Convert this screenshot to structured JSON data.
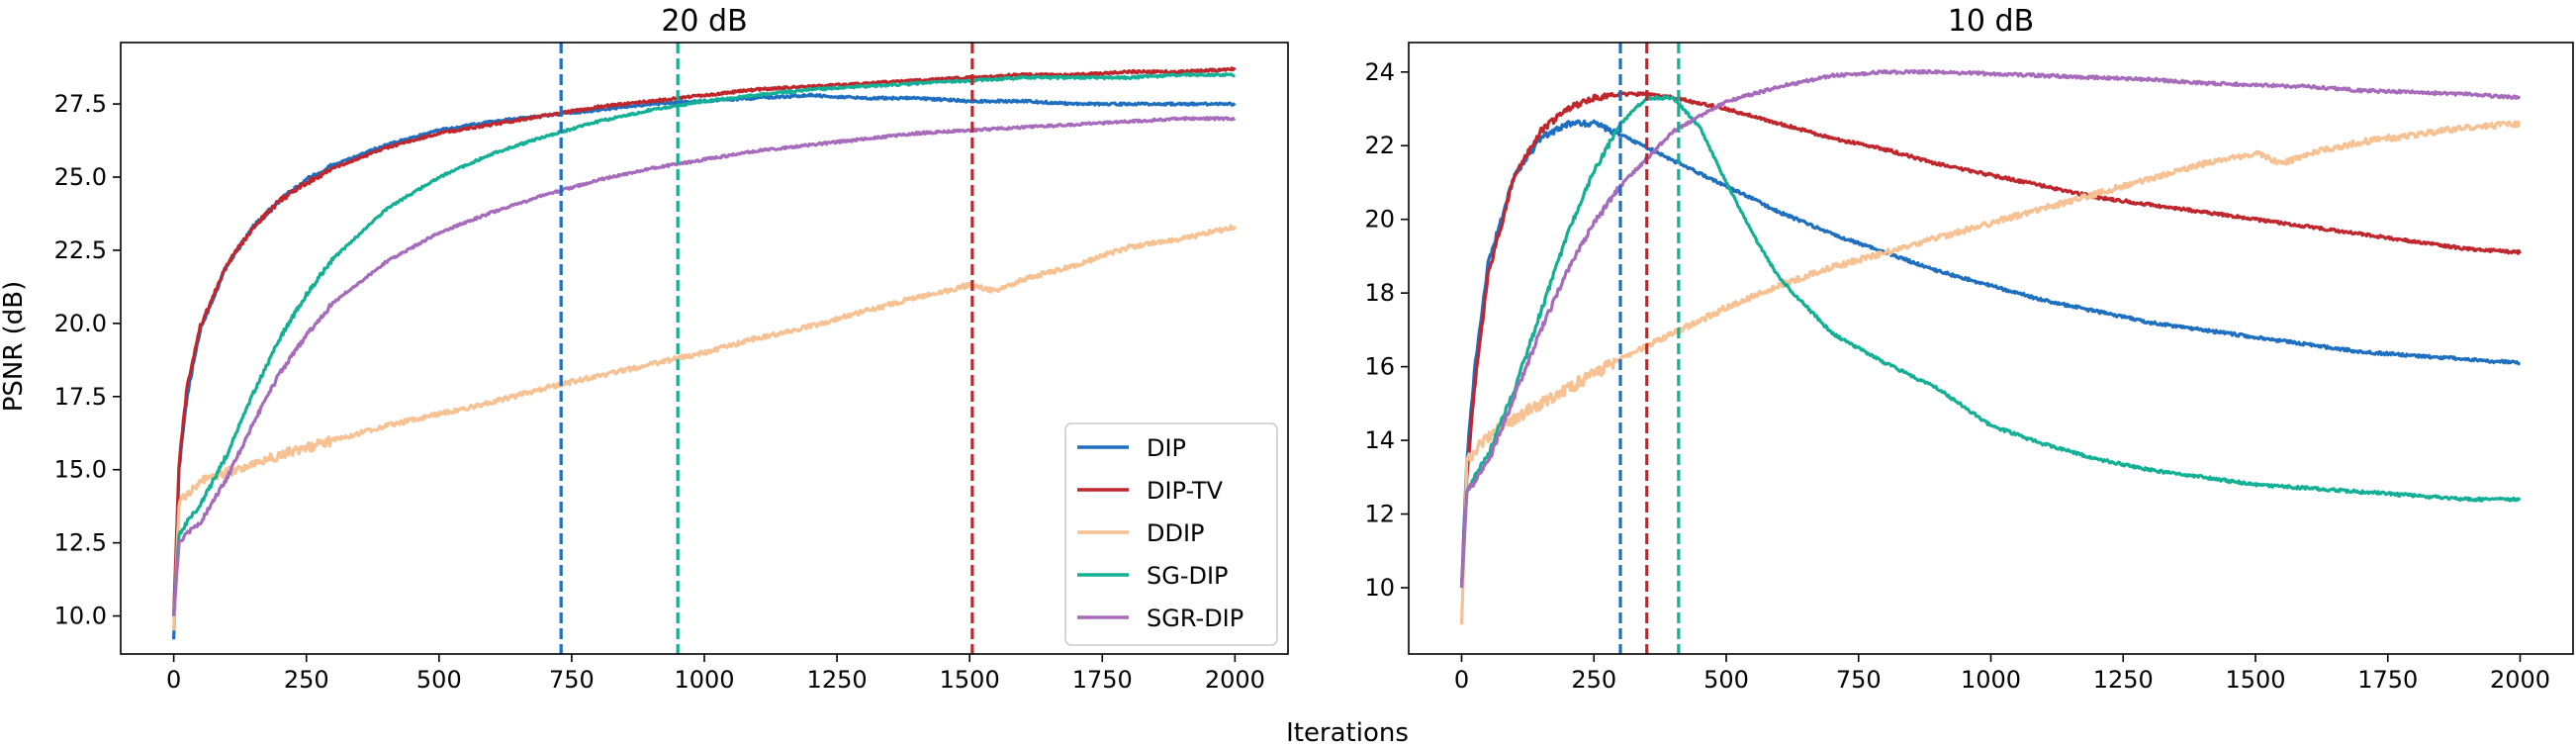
{
  "figure": {
    "xlabel": "Iterations",
    "ylabel": "PSNR (dB)"
  },
  "legend": {
    "location": "lower-right of left panel",
    "entries": [
      {
        "name": "DIP",
        "color": "#1f6fc0"
      },
      {
        "name": "DIP-TV",
        "color": "#c0272d"
      },
      {
        "name": "DDIP",
        "color": "#f6c193"
      },
      {
        "name": "SG-DIP",
        "color": "#13b096"
      },
      {
        "name": "SGR-DIP",
        "color": "#a66bbb"
      }
    ]
  },
  "chart_data": [
    {
      "type": "line",
      "title": "20 dB",
      "xlabel": "Iterations",
      "ylabel": "PSNR (dB)",
      "xlim": [
        -100,
        2100
      ],
      "ylim": [
        8.7,
        29.6
      ],
      "xticks": [
        0,
        250,
        500,
        750,
        1000,
        1250,
        1500,
        1750,
        2000
      ],
      "yticks": [
        10.0,
        12.5,
        15.0,
        17.5,
        20.0,
        22.5,
        25.0,
        27.5
      ],
      "ytick_labels": [
        "10.0",
        "12.5",
        "15.0",
        "17.5",
        "20.0",
        "22.5",
        "25.0",
        "27.5"
      ],
      "vlines": [
        {
          "x": 730,
          "color": "#1f6fc0",
          "style": "dashed"
        },
        {
          "x": 950,
          "color": "#13b096",
          "style": "dashed"
        },
        {
          "x": 1505,
          "color": "#c0272d",
          "style": "dashed"
        }
      ],
      "series": [
        {
          "name": "DIP",
          "color": "#1f6fc0",
          "x": [
            0,
            10,
            25,
            50,
            100,
            150,
            200,
            250,
            300,
            400,
            500,
            600,
            700,
            800,
            900,
            1000,
            1100,
            1200,
            1300,
            1400,
            1500,
            1600,
            1700,
            1800,
            1900,
            2000
          ],
          "y": [
            9.2,
            15.0,
            17.5,
            19.8,
            22.0,
            23.3,
            24.2,
            24.9,
            25.4,
            26.1,
            26.6,
            26.9,
            27.1,
            27.3,
            27.5,
            27.6,
            27.7,
            27.8,
            27.7,
            27.7,
            27.6,
            27.6,
            27.5,
            27.5,
            27.5,
            27.5
          ]
        },
        {
          "name": "DIP-TV",
          "color": "#c0272d",
          "x": [
            0,
            10,
            25,
            50,
            100,
            150,
            200,
            250,
            300,
            400,
            500,
            600,
            700,
            800,
            900,
            1000,
            1100,
            1200,
            1300,
            1400,
            1500,
            1600,
            1700,
            1800,
            1900,
            2000
          ],
          "y": [
            10.0,
            15.2,
            17.8,
            19.9,
            22.0,
            23.3,
            24.2,
            24.8,
            25.3,
            26.0,
            26.5,
            26.8,
            27.1,
            27.4,
            27.6,
            27.8,
            28.0,
            28.1,
            28.2,
            28.3,
            28.4,
            28.5,
            28.5,
            28.6,
            28.6,
            28.7
          ]
        },
        {
          "name": "DDIP",
          "color": "#f6c193",
          "x": [
            0,
            10,
            25,
            50,
            100,
            200,
            300,
            400,
            500,
            600,
            700,
            800,
            900,
            1000,
            1100,
            1200,
            1300,
            1400,
            1500,
            1550,
            1600,
            1700,
            1800,
            1900,
            2000
          ],
          "y": [
            9.5,
            13.8,
            14.2,
            14.6,
            14.9,
            15.5,
            16.0,
            16.5,
            16.9,
            17.3,
            17.8,
            18.2,
            18.6,
            19.0,
            19.5,
            19.9,
            20.4,
            20.9,
            21.3,
            21.1,
            21.5,
            22.0,
            22.6,
            22.9,
            23.3
          ]
        },
        {
          "name": "SG-DIP",
          "color": "#13b096",
          "x": [
            0,
            10,
            25,
            50,
            100,
            150,
            200,
            250,
            300,
            400,
            500,
            600,
            700,
            800,
            900,
            1000,
            1100,
            1200,
            1300,
            1400,
            1500,
            1600,
            1700,
            1800,
            1900,
            2000
          ],
          "y": [
            10.0,
            12.8,
            13.2,
            13.8,
            15.5,
            17.6,
            19.5,
            21.0,
            22.2,
            23.9,
            25.0,
            25.8,
            26.4,
            26.9,
            27.3,
            27.6,
            27.8,
            28.0,
            28.1,
            28.2,
            28.3,
            28.4,
            28.4,
            28.4,
            28.5,
            28.5
          ]
        },
        {
          "name": "SGR-DIP",
          "color": "#a66bbb",
          "x": [
            0,
            10,
            25,
            50,
            100,
            150,
            200,
            250,
            300,
            400,
            500,
            600,
            700,
            800,
            900,
            1000,
            1100,
            1200,
            1300,
            1400,
            1500,
            1600,
            1700,
            1800,
            1900,
            2000
          ],
          "y": [
            10.0,
            12.5,
            12.8,
            13.2,
            14.7,
            16.6,
            18.3,
            19.6,
            20.7,
            22.1,
            23.1,
            23.8,
            24.4,
            24.9,
            25.3,
            25.6,
            25.9,
            26.1,
            26.3,
            26.5,
            26.6,
            26.7,
            26.8,
            26.9,
            27.0,
            27.0
          ]
        }
      ]
    },
    {
      "type": "line",
      "title": "10 dB",
      "xlabel": "Iterations",
      "ylabel": "",
      "xlim": [
        -100,
        2100
      ],
      "ylim": [
        8.2,
        24.8
      ],
      "xticks": [
        0,
        250,
        500,
        750,
        1000,
        1250,
        1500,
        1750,
        2000
      ],
      "yticks": [
        10,
        12,
        14,
        16,
        18,
        20,
        22,
        24
      ],
      "ytick_labels": [
        "10",
        "12",
        "14",
        "16",
        "18",
        "20",
        "22",
        "24"
      ],
      "vlines": [
        {
          "x": 300,
          "color": "#1f6fc0",
          "style": "dashed"
        },
        {
          "x": 350,
          "color": "#c0272d",
          "style": "dashed"
        },
        {
          "x": 410,
          "color": "#13b096",
          "style": "dashed"
        }
      ],
      "series": [
        {
          "name": "DIP",
          "color": "#1f6fc0",
          "x": [
            0,
            10,
            25,
            50,
            100,
            150,
            200,
            250,
            300,
            400,
            500,
            600,
            700,
            800,
            900,
            1000,
            1100,
            1200,
            1300,
            1400,
            1500,
            1600,
            1700,
            1800,
            1900,
            2000
          ],
          "y": [
            10.0,
            13.5,
            16.0,
            18.8,
            21.2,
            22.2,
            22.6,
            22.6,
            22.3,
            21.6,
            20.9,
            20.2,
            19.6,
            19.1,
            18.6,
            18.2,
            17.8,
            17.5,
            17.2,
            17.0,
            16.8,
            16.6,
            16.4,
            16.3,
            16.2,
            16.1
          ]
        },
        {
          "name": "DIP-TV",
          "color": "#c0272d",
          "x": [
            0,
            10,
            25,
            50,
            100,
            150,
            200,
            250,
            300,
            350,
            400,
            500,
            600,
            700,
            800,
            900,
            1000,
            1100,
            1200,
            1300,
            1400,
            1500,
            1600,
            1700,
            1800,
            1900,
            2000
          ],
          "y": [
            10.0,
            13.0,
            15.5,
            18.5,
            21.2,
            22.4,
            23.0,
            23.3,
            23.4,
            23.4,
            23.3,
            23.0,
            22.6,
            22.2,
            21.9,
            21.5,
            21.2,
            20.9,
            20.6,
            20.4,
            20.2,
            20.0,
            19.8,
            19.6,
            19.4,
            19.2,
            19.1
          ]
        },
        {
          "name": "DDIP",
          "color": "#f6c193",
          "x": [
            0,
            10,
            25,
            50,
            100,
            200,
            300,
            400,
            500,
            600,
            700,
            800,
            900,
            1000,
            1100,
            1200,
            1300,
            1400,
            1500,
            1550,
            1600,
            1700,
            1800,
            1900,
            2000
          ],
          "y": [
            9.0,
            13.4,
            13.7,
            14.1,
            14.6,
            15.4,
            16.2,
            16.9,
            17.6,
            18.2,
            18.7,
            19.1,
            19.5,
            19.9,
            20.3,
            20.7,
            21.1,
            21.5,
            21.8,
            21.5,
            21.8,
            22.1,
            22.3,
            22.5,
            22.6
          ]
        },
        {
          "name": "SG-DIP",
          "color": "#13b096",
          "x": [
            0,
            10,
            25,
            50,
            100,
            150,
            200,
            250,
            300,
            350,
            400,
            450,
            500,
            550,
            600,
            700,
            800,
            900,
            1000,
            1100,
            1200,
            1300,
            1400,
            1500,
            1600,
            1700,
            1800,
            1900,
            2000
          ],
          "y": [
            10.0,
            12.6,
            13.0,
            13.6,
            15.4,
            17.5,
            19.6,
            21.3,
            22.6,
            23.3,
            23.3,
            22.5,
            21.0,
            19.6,
            18.4,
            16.9,
            16.1,
            15.4,
            14.4,
            13.9,
            13.5,
            13.2,
            13.0,
            12.8,
            12.7,
            12.6,
            12.5,
            12.4,
            12.4
          ]
        },
        {
          "name": "SGR-DIP",
          "color": "#a66bbb",
          "x": [
            0,
            10,
            25,
            50,
            100,
            150,
            200,
            250,
            300,
            400,
            500,
            600,
            700,
            800,
            900,
            1000,
            1100,
            1200,
            1300,
            1400,
            1500,
            1600,
            1700,
            1800,
            1900,
            2000
          ],
          "y": [
            10.0,
            12.6,
            12.9,
            13.4,
            15.2,
            17.0,
            18.6,
            19.9,
            20.9,
            22.4,
            23.2,
            23.6,
            23.9,
            24.0,
            24.0,
            23.95,
            23.9,
            23.85,
            23.8,
            23.7,
            23.65,
            23.6,
            23.5,
            23.45,
            23.4,
            23.3
          ]
        }
      ]
    }
  ]
}
